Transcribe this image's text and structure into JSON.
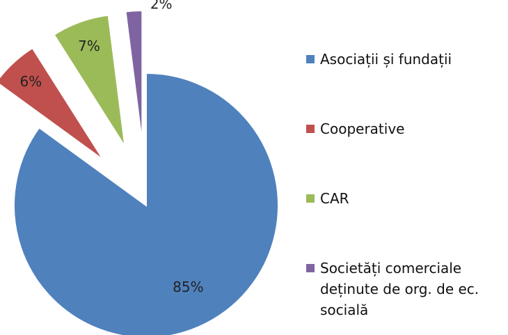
{
  "chart_data": {
    "type": "pie",
    "categories": [
      "Asociații și fundații",
      "Cooperative",
      "CAR",
      "Societăți comerciale deținute de org. de ec. socială"
    ],
    "values": [
      85,
      6,
      7,
      2
    ],
    "value_labels": [
      "85%",
      "6%",
      "7%",
      "2%"
    ],
    "colors": [
      "#4f81bd",
      "#c0504d",
      "#9bbb59",
      "#8064a2"
    ],
    "exploded": [
      false,
      true,
      true,
      true
    ],
    "legend": "right"
  }
}
